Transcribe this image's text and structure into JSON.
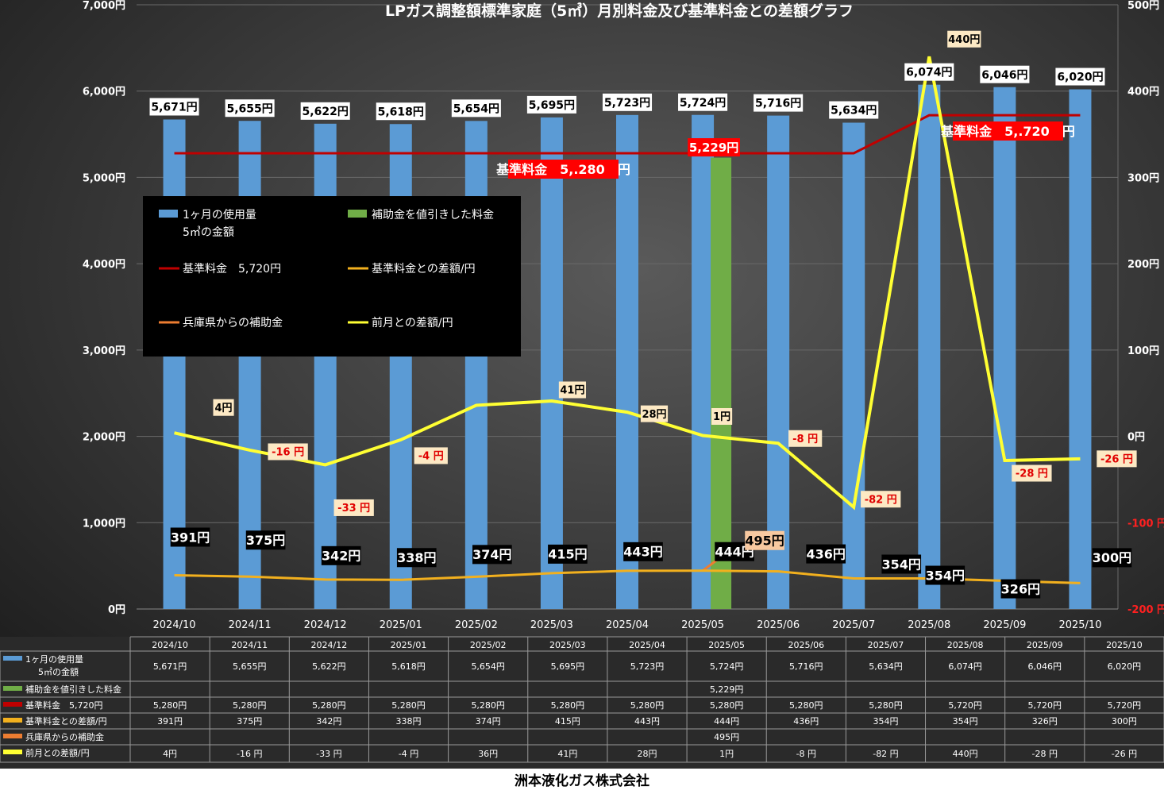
{
  "chart_data": {
    "type": "bar",
    "title": "LPガス調整額標準家庭（5㎥）月別料金及び基準料金との差額グラフ",
    "categories": [
      "2024/10",
      "2024/11",
      "2024/12",
      "2025/01",
      "2025/02",
      "2025/03",
      "2025/04",
      "2025/05",
      "2025/06",
      "2025/07",
      "2025/08",
      "2025/09",
      "2025/10"
    ],
    "left_axis": {
      "min": 0,
      "max": 7000,
      "step": 1000,
      "ticks": [
        "0円",
        "1,000円",
        "2,000円",
        "3,000円",
        "4,000円",
        "5,000円",
        "6,000円",
        "7,000円"
      ]
    },
    "right_axis": {
      "min": -200,
      "max": 500,
      "step": 100,
      "ticks": [
        "-200 円",
        "-100 円",
        "0円",
        "100円",
        "200円",
        "300円",
        "400円",
        "500円"
      ]
    },
    "grid": true,
    "legend_position": "top-left",
    "series": [
      {
        "name": "1ヶ月の使用量 5㎥の金額",
        "table_label": "1ヶ月の使用量\n5㎥の金額",
        "legend_label": "1ヶ月の使用量\n5㎥の金額",
        "type": "bar",
        "axis": "left",
        "color": "#5B9BD5",
        "values": [
          5671,
          5655,
          5622,
          5618,
          5654,
          5695,
          5723,
          5724,
          5716,
          5634,
          6074,
          6046,
          6020
        ],
        "labels": [
          "5,671円",
          "5,655円",
          "5,622円",
          "5,618円",
          "5,654円",
          "5,695円",
          "5,723円",
          "5,724円",
          "5,716円",
          "5,634円",
          "6,074円",
          "6,046円",
          "6,020円"
        ]
      },
      {
        "name": "補助金を値引きした料金",
        "legend_label": "補助金を値引きした料金",
        "type": "bar",
        "axis": "left",
        "color": "#70AD47",
        "values": [
          null,
          null,
          null,
          null,
          null,
          null,
          null,
          5229,
          null,
          null,
          null,
          null,
          null
        ],
        "labels": [
          "",
          "",
          "",
          "",
          "",
          "",
          "",
          "5,229円",
          "",
          "",
          "",
          "",
          ""
        ]
      },
      {
        "name": "基準料金 5,720円",
        "table_label": "基準料金　5,720円",
        "legend_label": "基準料金　5,720円",
        "type": "line",
        "axis": "left",
        "color": "#C00000",
        "values": [
          5280,
          5280,
          5280,
          5280,
          5280,
          5280,
          5280,
          5280,
          5280,
          5280,
          5720,
          5720,
          5720
        ],
        "labels": [
          "5,280円",
          "5,280円",
          "5,280円",
          "5,280円",
          "5,280円",
          "5,280円",
          "5,280円",
          "5,280円",
          "5,280円",
          "5,280円",
          "5,720円",
          "5,720円",
          "5,720円"
        ]
      },
      {
        "name": "基準料金との差額/円",
        "legend_label": "基準料金との差額/円",
        "type": "line",
        "axis": "left",
        "color": "#F2B01E",
        "values": [
          391,
          375,
          342,
          338,
          374,
          415,
          443,
          444,
          436,
          354,
          354,
          326,
          300
        ],
        "labels": [
          "391円",
          "375円",
          "342円",
          "338円",
          "374円",
          "415円",
          "443円",
          "444円",
          "436円",
          "354円",
          "354円",
          "326円",
          "300円"
        ]
      },
      {
        "name": "兵庫県からの補助金",
        "legend_label": "兵庫県からの補助金",
        "type": "line",
        "axis": "left",
        "color": "#ED7D31",
        "values": [
          null,
          null,
          null,
          null,
          null,
          null,
          null,
          495,
          null,
          null,
          null,
          null,
          null
        ],
        "labels": [
          "",
          "",
          "",
          "",
          "",
          "",
          "",
          "495円",
          "",
          "",
          "",
          "",
          ""
        ]
      },
      {
        "name": "前月との差額/円",
        "legend_label": "前月との差額/円",
        "type": "line",
        "axis": "right",
        "color": "#FFFF33",
        "values": [
          4,
          -16,
          -33,
          -4,
          36,
          41,
          28,
          1,
          -8,
          -82,
          440,
          -28,
          -26
        ],
        "labels": [
          "4円",
          "-16 円",
          "-33 円",
          "-4 円",
          "36円",
          "41円",
          "28円",
          "1円",
          "-8 円",
          "-82 円",
          "440円",
          "-28 円",
          "-26 円"
        ],
        "chart_labels": [
          "4円",
          "-16 円",
          "-33 円",
          "-4 円",
          "36円",
          "41円",
          "28円",
          "1円",
          "-8 円",
          "-82 円",
          "440円",
          "-28 円",
          "-26 円"
        ]
      }
    ],
    "annotations": {
      "standard_fee_old": "基準料金　5,.280　円",
      "standard_fee_new": "基準料金　5,.720　円",
      "subsidy_price": "5,229円",
      "subsidy_amount": "495円"
    }
  },
  "footer": "洲本液化ガス株式会社",
  "colors": {
    "background_dark": "#2a2a2a",
    "grid": "#6a6a6a",
    "axis_text": "#ffffff",
    "right_axis_negative": "#ff2020",
    "legend_bg": "#000000",
    "label_box_dark": "#000000",
    "label_box_light": "#ffffff",
    "label_box_diff": "#fde9c4"
  }
}
